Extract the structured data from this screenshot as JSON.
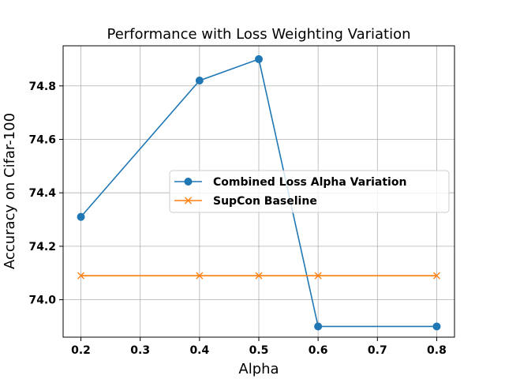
{
  "chart_data": {
    "type": "line",
    "title": "Performance with Loss Weighting Variation",
    "xlabel": "Alpha",
    "ylabel": "Accuracy on Cifar-100",
    "xlim": [
      0.17,
      0.83
    ],
    "ylim": [
      73.86,
      74.95
    ],
    "x_ticks": [
      0.2,
      0.3,
      0.4,
      0.5,
      0.6,
      0.7,
      0.8
    ],
    "x_tick_labels": [
      "0.2",
      "0.3",
      "0.4",
      "0.5",
      "0.6",
      "0.7",
      "0.8"
    ],
    "y_ticks": [
      74.0,
      74.2,
      74.4,
      74.6,
      74.8
    ],
    "y_tick_labels": [
      "74.0",
      "74.2",
      "74.4",
      "74.6",
      "74.8"
    ],
    "grid": true,
    "legend_position": "center-right",
    "series": [
      {
        "name": "Combined Loss Alpha Variation",
        "color": "#1f77b4",
        "marker": "circle",
        "x": [
          0.2,
          0.4,
          0.5,
          0.6,
          0.8
        ],
        "y": [
          74.31,
          74.82,
          74.9,
          73.9,
          73.9
        ]
      },
      {
        "name": "SupCon Baseline",
        "color": "#ff7f0e",
        "marker": "x",
        "x": [
          0.2,
          0.4,
          0.5,
          0.6,
          0.8
        ],
        "y": [
          74.09,
          74.09,
          74.09,
          74.09,
          74.09
        ]
      }
    ]
  }
}
